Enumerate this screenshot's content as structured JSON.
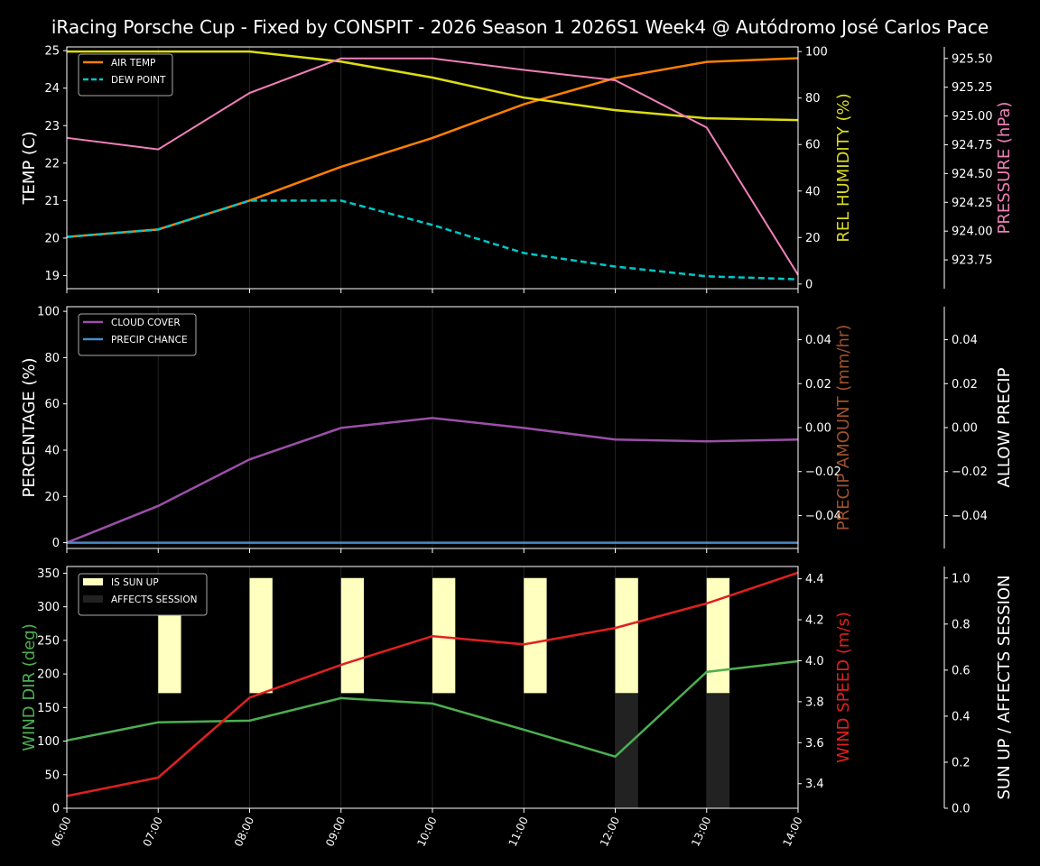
{
  "title": "iRacing Porsche Cup - Fixed by CONSPIT - 2026 Season 1 2026S1 Week4 @ Autódromo José Carlos Pace",
  "chart_data": [
    {
      "type": "line",
      "x": [
        "06:00",
        "07:00",
        "08:00",
        "09:00",
        "10:00",
        "11:00",
        "12:00",
        "13:00",
        "14:00"
      ],
      "axes": {
        "left": {
          "label": "TEMP (C)",
          "range": [
            18.65,
            25.1
          ],
          "ticks": [
            19,
            20,
            21,
            22,
            23,
            24,
            25
          ],
          "color": "#ffffff"
        },
        "right1": {
          "label": "REL HUMIDITY (%)",
          "range": [
            -2,
            102
          ],
          "ticks": [
            0,
            20,
            40,
            60,
            80,
            100
          ],
          "color": "#dddd22"
        },
        "right2": {
          "label": "PRESSURE (hPa)",
          "range": [
            923.5,
            925.6
          ],
          "ticks": [
            "923.75",
            "924.00",
            "924.25",
            "924.50",
            "924.75",
            "925.00",
            "925.25",
            "925.50"
          ],
          "color": "#f080b8"
        }
      },
      "series": [
        {
          "name": "AIR TEMP",
          "axis": "left",
          "color": "#ff8000",
          "dash": false,
          "values": [
            20.03,
            20.23,
            21.0,
            21.9,
            22.67,
            23.57,
            24.27,
            24.7,
            24.8
          ]
        },
        {
          "name": "DEW POINT",
          "axis": "left",
          "color": "#00c8c8",
          "dash": true,
          "values": [
            20.03,
            20.23,
            21.0,
            21.0,
            20.35,
            19.6,
            19.24,
            18.98,
            18.9
          ]
        },
        {
          "axis": "right1",
          "color": "#dddd11",
          "dash": false,
          "values": [
            100,
            100,
            100,
            95.7,
            88.8,
            80.2,
            74.8,
            71.3,
            70.5
          ]
        },
        {
          "axis": "right2",
          "color": "#f080b8",
          "dash": false,
          "values": [
            924.81,
            924.71,
            925.2,
            925.5,
            925.5,
            925.4,
            925.31,
            924.9,
            923.62
          ]
        }
      ],
      "legend": "top-left",
      "grid": "vertical"
    },
    {
      "type": "line",
      "x": [
        "06:00",
        "07:00",
        "08:00",
        "09:00",
        "10:00",
        "11:00",
        "12:00",
        "13:00",
        "14:00"
      ],
      "axes": {
        "left": {
          "label": "PERCENTAGE (%)",
          "range": [
            -2.5,
            102
          ],
          "ticks": [
            0,
            20,
            40,
            60,
            80,
            100
          ],
          "color": "#ffffff"
        },
        "right1": {
          "label": "PRECIP AMOUNT (mm/hr)",
          "range": [
            -0.055,
            0.055
          ],
          "ticks": [
            "−0.04",
            "−0.02",
            "0.00",
            "0.02",
            "0.04"
          ],
          "color": "#a0522d"
        },
        "right2": {
          "label": "ALLOW PRECIP",
          "range": [
            -0.055,
            0.055
          ],
          "ticks": [
            "−0.04",
            "−0.02",
            "0.00",
            "0.02",
            "0.04"
          ],
          "color": "#ffffff"
        }
      },
      "series": [
        {
          "name": "CLOUD COVER",
          "axis": "left",
          "color": "#9b4fa8",
          "dash": false,
          "values": [
            0,
            15.9,
            36,
            49.6,
            53.9,
            49.6,
            44.6,
            43.8,
            44.6
          ]
        },
        {
          "name": "PRECIP CHANCE",
          "axis": "left",
          "color": "#4a8ac8",
          "dash": false,
          "values": [
            0,
            0,
            0,
            0,
            0,
            0,
            0,
            0,
            0
          ]
        }
      ],
      "legend": "top-left",
      "grid": "vertical"
    },
    {
      "type": "line+bar",
      "x": [
        "06:00",
        "07:00",
        "08:00",
        "09:00",
        "10:00",
        "11:00",
        "12:00",
        "13:00",
        "14:00"
      ],
      "axes": {
        "left": {
          "label": "WIND DIR (deg)",
          "range": [
            0,
            360
          ],
          "ticks": [
            0,
            50,
            100,
            150,
            200,
            250,
            300,
            350
          ],
          "color": "#4caf50"
        },
        "right1": {
          "label": "WIND SPEED (m/s)",
          "range": [
            3.28,
            4.46
          ],
          "ticks": [
            "3.4",
            "3.6",
            "3.8",
            "4.0",
            "4.2",
            "4.4"
          ],
          "color": "#e02020"
        },
        "right2": {
          "label": "SUN UP / AFFECTS SESSION",
          "range": [
            0,
            1.05
          ],
          "ticks": [
            "0.0",
            "0.2",
            "0.4",
            "0.6",
            "0.8",
            "1.0"
          ],
          "color": "#ffffff"
        }
      },
      "series": [
        {
          "axis": "left",
          "color": "#4caf50",
          "values": [
            101,
            128,
            130.5,
            164,
            156,
            117,
            77,
            203,
            219
          ]
        },
        {
          "axis": "right1",
          "color": "#e02020",
          "values": [
            3.34,
            3.43,
            3.82,
            3.98,
            4.12,
            4.08,
            4.16,
            4.28,
            4.43
          ]
        }
      ],
      "bars": [
        {
          "name": "IS SUN UP",
          "color": "#ffffc0",
          "values": [
            0,
            1,
            1,
            1,
            1,
            1,
            1,
            1,
            0
          ]
        },
        {
          "name": "AFFECTS SESSION",
          "color": "#222222",
          "values": [
            0,
            0,
            0,
            0,
            0,
            0,
            1,
            1,
            0
          ]
        }
      ],
      "legend": "top-left",
      "grid": "vertical"
    }
  ]
}
